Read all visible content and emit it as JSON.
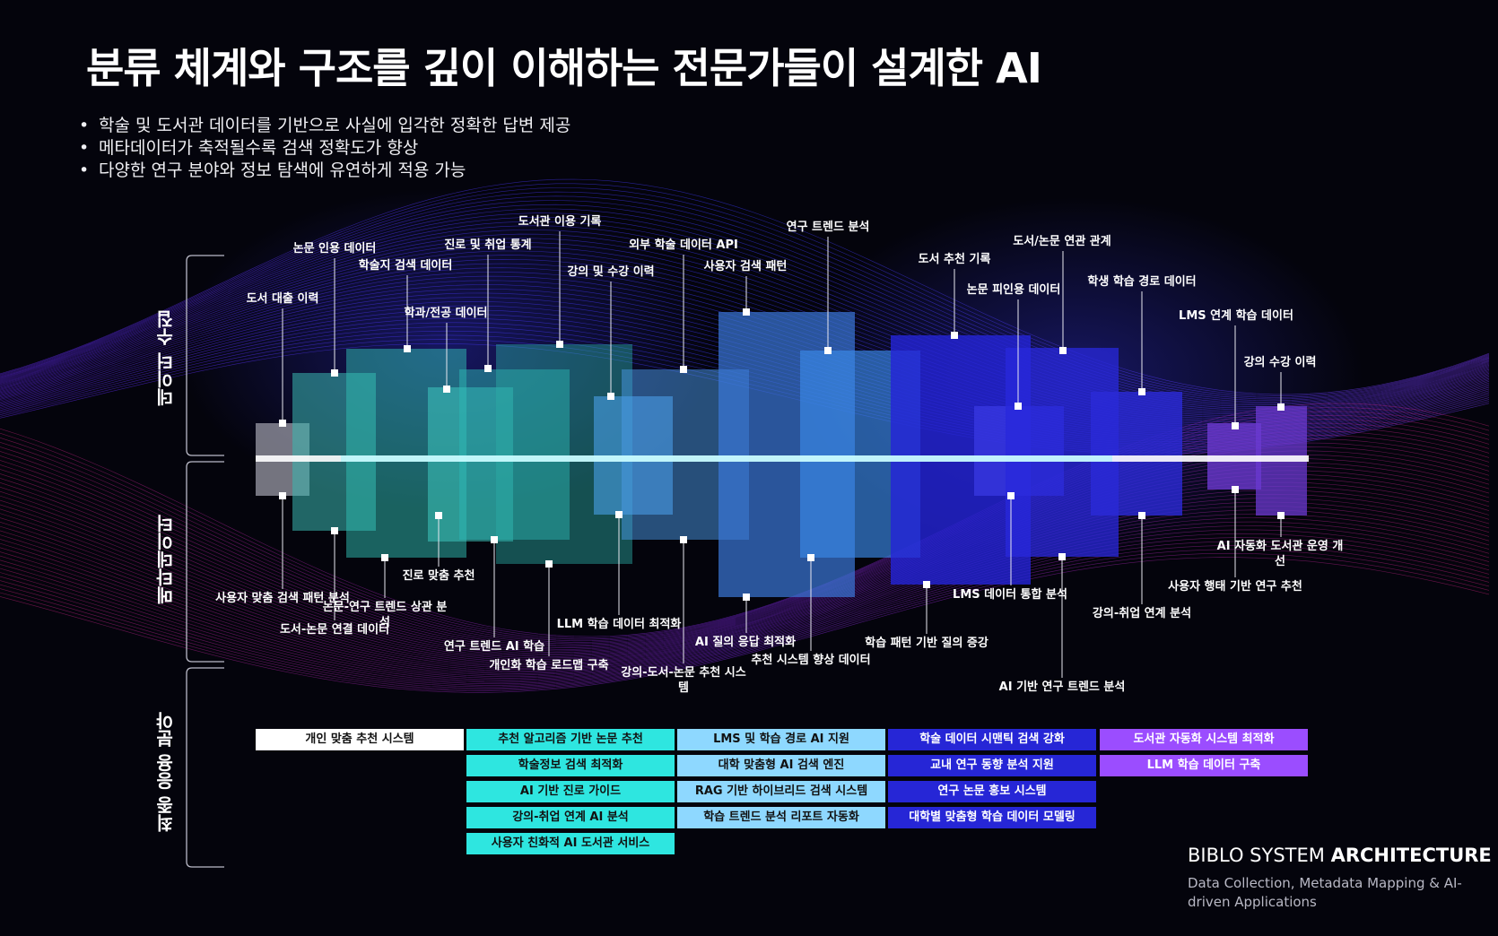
{
  "title": "분류 체계와 구조를 깊이 이해하는 전문가들이 설계한 AI",
  "bullets": [
    "학술 및 도서관 데이터를 기반으로 사실에 입각한 정확한 답변 제공",
    "메타데이터가 축적될수록 검색 정확도가 향상",
    "다양한 연구 분야와 정보 탐색에 유연하게 적용 가능"
  ],
  "sections": {
    "data_collection": "데이터 수집",
    "metadata": "메타데이터",
    "applications": "최종 응용 분야"
  },
  "colors": {
    "background": "#04040c",
    "gray": "#8c8c98",
    "teal": "#2ec4b6",
    "light_blue": "#4aa3f0",
    "blue": "#3a6ee8",
    "deep_blue": "#2a2ae0",
    "purple": "#6a3ad0",
    "app_white": "#ffffff",
    "app_cyan": "#2ee6e0",
    "app_lightblue": "#8ed8ff",
    "app_blue": "#2626d6",
    "app_purple": "#9b4dff"
  },
  "top_labels": [
    "도서 대출 이력",
    "논문 인용 데이터",
    "학술지 검색 데이터",
    "학과/전공 데이터",
    "진로 및 취업 통계",
    "도서관 이용 기록",
    "강의 및 수강 이력",
    "외부 학술 데이터 API",
    "사용자 검색 패턴",
    "연구 트렌드 분석",
    "도서 추천 기록",
    "논문 피인용 데이터",
    "도서/논문 연관 관계",
    "학생 학습 경로 데이터",
    "LMS 연계 학습 데이터",
    "강의 수강 이력"
  ],
  "bottom_labels": [
    "사용자 맞춤 검색 패턴 분석",
    "도서-논문 연결 데이터",
    "논문-연구 트렌드 상관 분석",
    "진로 맞춤 추천",
    "연구 트렌드 AI 학습",
    "개인화 학습 로드맵 구축",
    "LLM 학습 데이터 최적화",
    "강의-도서-논문 추천 시스템",
    "AI 질의 응답 최적화",
    "추천 시스템 향상 데이터",
    "학습 패턴 기반 질의 증강",
    "LMS 데이터 통합 분석",
    "AI 기반 연구 트렌드 분석",
    "강의-취업 연계 분석",
    "사용자 행태 기반 연구 추천",
    "AI 자동화 도서관 운영 개선"
  ],
  "applications": [
    {
      "color": "app_white",
      "items": [
        "개인 맞춤 추천 시스템"
      ]
    },
    {
      "color": "app_cyan",
      "items": [
        "추천 알고리즘 기반 논문 추천",
        "학술정보 검색 최적화",
        "AI 기반 진로 가이드",
        "강의-취업 연계 AI 분석",
        "사용자 친화적 AI 도서관 서비스"
      ]
    },
    {
      "color": "app_lightblue",
      "items": [
        "LMS 및 학습 경로 AI 지원",
        "대학 맞춤형 AI 검색 엔진",
        "RAG 기반 하이브리드 검색 시스템",
        "학습 트렌드 분석 리포트 자동화"
      ]
    },
    {
      "color": "app_blue",
      "items": [
        "학술 데이터 시맨틱 검색 강화",
        "교내 연구 동향 분석 지원",
        "연구 논문 홍보 시스템",
        "대학별 맞춤형 학습 데이터 모델링"
      ]
    },
    {
      "color": "app_purple",
      "items": [
        "도서관 자동화 시스템 최적화",
        "LLM 학습 데이터 구축"
      ]
    }
  ],
  "brand": {
    "name_light": "BIBLO SYSTEM",
    "name_bold": "ARCHITECTURE",
    "subtitle": "Data Collection, Metadata Mapping & AI-driven Applications"
  }
}
